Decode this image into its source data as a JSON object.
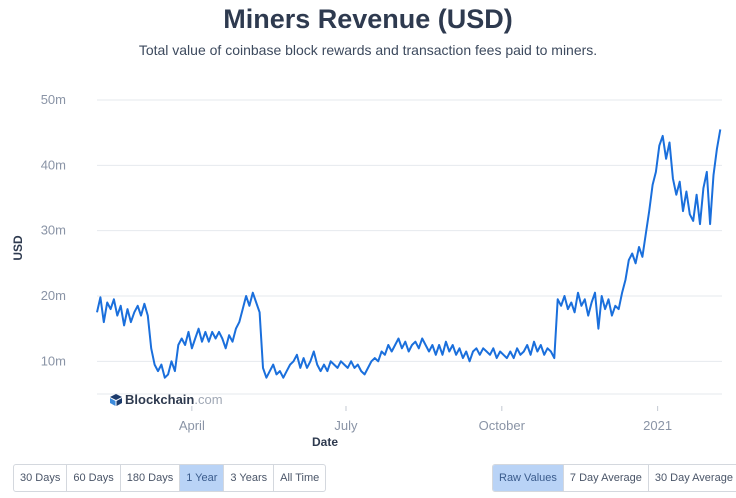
{
  "header": {
    "title": "Miners Revenue (USD)",
    "subtitle": "Total value of coinbase block rewards and transaction fees paid to miners."
  },
  "watermark": {
    "name": "Blockchain",
    "tld": ".com"
  },
  "range_buttons": [
    {
      "label": "30 Days",
      "active": false
    },
    {
      "label": "60 Days",
      "active": false
    },
    {
      "label": "180 Days",
      "active": false
    },
    {
      "label": "1 Year",
      "active": true
    },
    {
      "label": "3 Years",
      "active": false
    },
    {
      "label": "All Time",
      "active": false
    }
  ],
  "mode_buttons": [
    {
      "label": "Raw Values",
      "active": true
    },
    {
      "label": "7 Day Average",
      "active": false
    },
    {
      "label": "30 Day Average",
      "active": false
    }
  ],
  "colors": {
    "line": "#1a6fdc",
    "grid": "#e6e9ee",
    "active_button": "#b9d3f6"
  },
  "chart_data": {
    "type": "line",
    "title": "Miners Revenue (USD)",
    "xlabel": "Date",
    "ylabel": "USD",
    "yticks": [
      {
        "value": 10000000,
        "label": "10m"
      },
      {
        "value": 20000000,
        "label": "20m"
      },
      {
        "value": 30000000,
        "label": "30m"
      },
      {
        "value": 40000000,
        "label": "40m"
      },
      {
        "value": 50000000,
        "label": "50m"
      }
    ],
    "xticks": [
      {
        "date": "2020-04-01",
        "label": "April"
      },
      {
        "date": "2020-07-01",
        "label": "July"
      },
      {
        "date": "2020-10-01",
        "label": "October"
      },
      {
        "date": "2021-01-01",
        "label": "2021"
      }
    ],
    "xlim": [
      "2020-02-05",
      "2021-02-08"
    ],
    "ylim": [
      5000000,
      50000000
    ],
    "grid": true,
    "legend": "none",
    "series": [
      {
        "values": [
          [
            "2020-02-05",
            17.5
          ],
          [
            "2020-02-07",
            19.8
          ],
          [
            "2020-02-09",
            16.0
          ],
          [
            "2020-02-11",
            19.0
          ],
          [
            "2020-02-13",
            18.0
          ],
          [
            "2020-02-15",
            19.5
          ],
          [
            "2020-02-17",
            17.0
          ],
          [
            "2020-02-19",
            18.5
          ],
          [
            "2020-02-21",
            15.5
          ],
          [
            "2020-02-23",
            18.0
          ],
          [
            "2020-02-25",
            16.0
          ],
          [
            "2020-02-27",
            17.5
          ],
          [
            "2020-02-29",
            18.5
          ],
          [
            "2020-03-02",
            17.0
          ],
          [
            "2020-03-04",
            18.8
          ],
          [
            "2020-03-06",
            17.0
          ],
          [
            "2020-03-08",
            12.0
          ],
          [
            "2020-03-10",
            9.5
          ],
          [
            "2020-03-12",
            8.5
          ],
          [
            "2020-03-14",
            9.5
          ],
          [
            "2020-03-16",
            7.5
          ],
          [
            "2020-03-18",
            8.0
          ],
          [
            "2020-03-20",
            10.0
          ],
          [
            "2020-03-22",
            8.5
          ],
          [
            "2020-03-24",
            12.5
          ],
          [
            "2020-03-26",
            13.5
          ],
          [
            "2020-03-28",
            12.5
          ],
          [
            "2020-03-30",
            14.5
          ],
          [
            "2020-04-01",
            12.0
          ],
          [
            "2020-04-03",
            13.5
          ],
          [
            "2020-04-05",
            15.0
          ],
          [
            "2020-04-07",
            13.0
          ],
          [
            "2020-04-09",
            14.5
          ],
          [
            "2020-04-11",
            13.0
          ],
          [
            "2020-04-13",
            14.5
          ],
          [
            "2020-04-15",
            13.5
          ],
          [
            "2020-04-17",
            14.5
          ],
          [
            "2020-04-19",
            13.5
          ],
          [
            "2020-04-21",
            12.0
          ],
          [
            "2020-04-23",
            14.0
          ],
          [
            "2020-04-25",
            13.0
          ],
          [
            "2020-04-27",
            15.0
          ],
          [
            "2020-04-29",
            16.0
          ],
          [
            "2020-05-01",
            18.0
          ],
          [
            "2020-05-03",
            20.0
          ],
          [
            "2020-05-05",
            18.5
          ],
          [
            "2020-05-07",
            20.5
          ],
          [
            "2020-05-09",
            19.0
          ],
          [
            "2020-05-11",
            17.5
          ],
          [
            "2020-05-13",
            9.0
          ],
          [
            "2020-05-15",
            7.5
          ],
          [
            "2020-05-17",
            8.5
          ],
          [
            "2020-05-19",
            9.5
          ],
          [
            "2020-05-21",
            8.0
          ],
          [
            "2020-05-23",
            8.5
          ],
          [
            "2020-05-25",
            7.5
          ],
          [
            "2020-05-27",
            8.5
          ],
          [
            "2020-05-29",
            9.5
          ],
          [
            "2020-05-31",
            10.0
          ],
          [
            "2020-06-02",
            11.0
          ],
          [
            "2020-06-04",
            9.0
          ],
          [
            "2020-06-06",
            10.5
          ],
          [
            "2020-06-08",
            9.0
          ],
          [
            "2020-06-10",
            10.0
          ],
          [
            "2020-06-12",
            11.5
          ],
          [
            "2020-06-14",
            9.5
          ],
          [
            "2020-06-16",
            8.5
          ],
          [
            "2020-06-18",
            9.5
          ],
          [
            "2020-06-20",
            8.5
          ],
          [
            "2020-06-22",
            10.0
          ],
          [
            "2020-06-24",
            9.5
          ],
          [
            "2020-06-26",
            9.0
          ],
          [
            "2020-06-28",
            10.0
          ],
          [
            "2020-06-30",
            9.5
          ],
          [
            "2020-07-02",
            9.0
          ],
          [
            "2020-07-04",
            10.0
          ],
          [
            "2020-07-06",
            9.0
          ],
          [
            "2020-07-08",
            9.5
          ],
          [
            "2020-07-10",
            8.5
          ],
          [
            "2020-07-12",
            8.0
          ],
          [
            "2020-07-14",
            9.0
          ],
          [
            "2020-07-16",
            10.0
          ],
          [
            "2020-07-18",
            10.5
          ],
          [
            "2020-07-20",
            10.0
          ],
          [
            "2020-07-22",
            11.5
          ],
          [
            "2020-07-24",
            11.0
          ],
          [
            "2020-07-26",
            12.5
          ],
          [
            "2020-07-28",
            11.5
          ],
          [
            "2020-07-30",
            12.5
          ],
          [
            "2020-08-01",
            13.5
          ],
          [
            "2020-08-03",
            12.0
          ],
          [
            "2020-08-05",
            13.0
          ],
          [
            "2020-08-07",
            11.5
          ],
          [
            "2020-08-09",
            12.5
          ],
          [
            "2020-08-11",
            13.0
          ],
          [
            "2020-08-13",
            12.0
          ],
          [
            "2020-08-15",
            13.5
          ],
          [
            "2020-08-17",
            12.5
          ],
          [
            "2020-08-19",
            11.5
          ],
          [
            "2020-08-21",
            12.5
          ],
          [
            "2020-08-23",
            11.0
          ],
          [
            "2020-08-25",
            12.5
          ],
          [
            "2020-08-27",
            11.0
          ],
          [
            "2020-08-29",
            13.0
          ],
          [
            "2020-08-31",
            11.5
          ],
          [
            "2020-09-02",
            12.5
          ],
          [
            "2020-09-04",
            11.0
          ],
          [
            "2020-09-06",
            12.0
          ],
          [
            "2020-09-08",
            10.5
          ],
          [
            "2020-09-10",
            11.5
          ],
          [
            "2020-09-12",
            10.0
          ],
          [
            "2020-09-14",
            11.5
          ],
          [
            "2020-09-16",
            12.0
          ],
          [
            "2020-09-18",
            11.0
          ],
          [
            "2020-09-20",
            12.0
          ],
          [
            "2020-09-22",
            11.5
          ],
          [
            "2020-09-24",
            11.0
          ],
          [
            "2020-09-26",
            12.0
          ],
          [
            "2020-09-28",
            10.5
          ],
          [
            "2020-09-30",
            11.5
          ],
          [
            "2020-10-02",
            11.0
          ],
          [
            "2020-10-04",
            10.5
          ],
          [
            "2020-10-06",
            11.5
          ],
          [
            "2020-10-08",
            10.5
          ],
          [
            "2020-10-10",
            12.0
          ],
          [
            "2020-10-12",
            11.0
          ],
          [
            "2020-10-14",
            11.5
          ],
          [
            "2020-10-16",
            12.5
          ],
          [
            "2020-10-18",
            11.0
          ],
          [
            "2020-10-20",
            13.0
          ],
          [
            "2020-10-22",
            11.5
          ],
          [
            "2020-10-24",
            12.5
          ],
          [
            "2020-10-26",
            11.0
          ],
          [
            "2020-10-28",
            12.0
          ],
          [
            "2020-10-30",
            11.5
          ],
          [
            "2020-11-01",
            10.5
          ],
          [
            "2020-11-03",
            19.5
          ],
          [
            "2020-11-05",
            18.5
          ],
          [
            "2020-11-07",
            20.0
          ],
          [
            "2020-11-09",
            18.0
          ],
          [
            "2020-11-11",
            19.0
          ],
          [
            "2020-11-13",
            17.5
          ],
          [
            "2020-11-15",
            20.5
          ],
          [
            "2020-11-17",
            18.5
          ],
          [
            "2020-11-19",
            19.5
          ],
          [
            "2020-11-21",
            17.0
          ],
          [
            "2020-11-23",
            19.0
          ],
          [
            "2020-11-25",
            20.5
          ],
          [
            "2020-11-27",
            15.0
          ],
          [
            "2020-11-29",
            20.0
          ],
          [
            "2020-12-01",
            18.0
          ],
          [
            "2020-12-03",
            19.5
          ],
          [
            "2020-12-05",
            17.0
          ],
          [
            "2020-12-07",
            18.5
          ],
          [
            "2020-12-09",
            18.0
          ],
          [
            "2020-12-11",
            20.5
          ],
          [
            "2020-12-13",
            22.5
          ],
          [
            "2020-12-15",
            25.5
          ],
          [
            "2020-12-17",
            26.5
          ],
          [
            "2020-12-19",
            25.0
          ],
          [
            "2020-12-21",
            27.5
          ],
          [
            "2020-12-23",
            26.0
          ],
          [
            "2020-12-25",
            29.5
          ],
          [
            "2020-12-27",
            33.0
          ],
          [
            "2020-12-29",
            37.0
          ],
          [
            "2020-12-31",
            39.0
          ],
          [
            "2021-01-02",
            43.0
          ],
          [
            "2021-01-04",
            44.5
          ],
          [
            "2021-01-06",
            41.0
          ],
          [
            "2021-01-08",
            43.5
          ],
          [
            "2021-01-10",
            38.0
          ],
          [
            "2021-01-12",
            35.5
          ],
          [
            "2021-01-14",
            37.5
          ],
          [
            "2021-01-16",
            33.0
          ],
          [
            "2021-01-18",
            36.0
          ],
          [
            "2021-01-20",
            32.5
          ],
          [
            "2021-01-22",
            31.5
          ],
          [
            "2021-01-24",
            35.5
          ],
          [
            "2021-01-26",
            31.0
          ],
          [
            "2021-01-28",
            36.5
          ],
          [
            "2021-01-30",
            39.0
          ],
          [
            "2021-02-01",
            31.0
          ],
          [
            "2021-02-03",
            38.5
          ],
          [
            "2021-02-05",
            42.5
          ],
          [
            "2021-02-07",
            45.5
          ]
        ]
      }
    ]
  }
}
